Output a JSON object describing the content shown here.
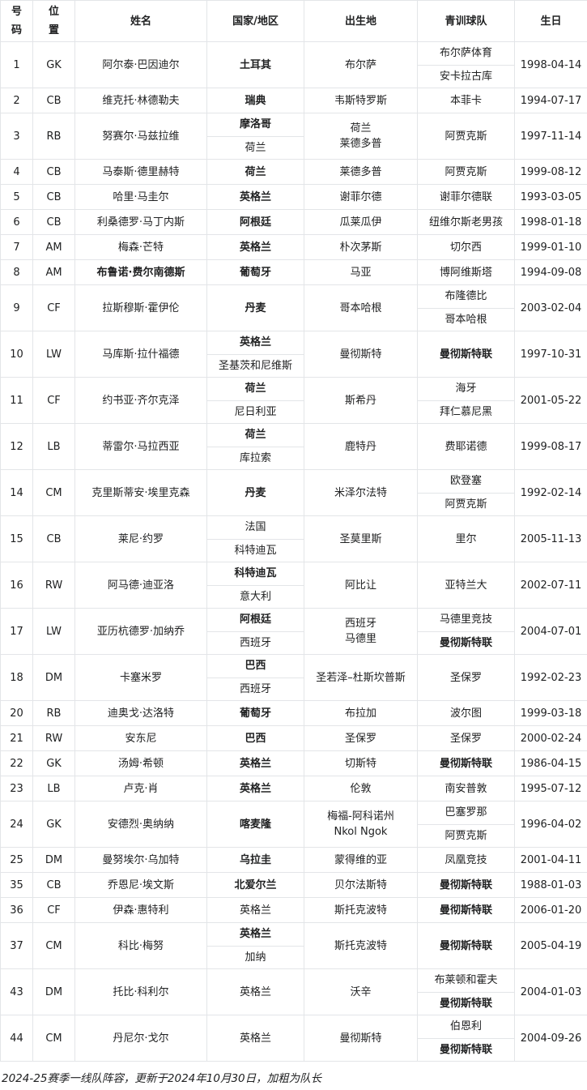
{
  "table": {
    "columns": [
      {
        "key": "number",
        "label": "号码"
      },
      {
        "key": "position",
        "label": "位置"
      },
      {
        "key": "name",
        "label": "姓名"
      },
      {
        "key": "country",
        "label": "国家/地区"
      },
      {
        "key": "birthplace",
        "label": "出生地"
      },
      {
        "key": "youth",
        "label": "青训球队"
      },
      {
        "key": "birthday",
        "label": "生日"
      }
    ],
    "rows": [
      {
        "number": "1",
        "position": "GK",
        "name": {
          "text": "阿尔泰·巴因迪尔",
          "bold": false
        },
        "countries": [
          {
            "text": "土耳其",
            "bold": true
          }
        ],
        "birthplace_lines": [
          "布尔萨"
        ],
        "youth_clubs": [
          {
            "text": "布尔萨体育",
            "bold": false
          },
          {
            "text": "安卡拉古库",
            "bold": false
          }
        ],
        "birthday": "1998-04-14"
      },
      {
        "number": "2",
        "position": "CB",
        "name": {
          "text": "维克托·林德勒夫",
          "bold": false
        },
        "countries": [
          {
            "text": "瑞典",
            "bold": true
          }
        ],
        "birthplace_lines": [
          "韦斯特罗斯"
        ],
        "youth_clubs": [
          {
            "text": "本菲卡",
            "bold": false
          }
        ],
        "birthday": "1994-07-17"
      },
      {
        "number": "3",
        "position": "RB",
        "name": {
          "text": "努赛尔·马兹拉维",
          "bold": false
        },
        "countries": [
          {
            "text": "摩洛哥",
            "bold": true
          },
          {
            "text": "荷兰",
            "bold": false
          }
        ],
        "birthplace_lines": [
          "荷兰",
          "莱德多普"
        ],
        "youth_clubs": [
          {
            "text": "阿贾克斯",
            "bold": false
          }
        ],
        "birthday": "1997-11-14"
      },
      {
        "number": "4",
        "position": "CB",
        "name": {
          "text": "马泰斯·德里赫特",
          "bold": false
        },
        "countries": [
          {
            "text": "荷兰",
            "bold": true
          }
        ],
        "birthplace_lines": [
          "莱德多普"
        ],
        "youth_clubs": [
          {
            "text": "阿贾克斯",
            "bold": false
          }
        ],
        "birthday": "1999-08-12"
      },
      {
        "number": "5",
        "position": "CB",
        "name": {
          "text": "哈里·马圭尔",
          "bold": false
        },
        "countries": [
          {
            "text": "英格兰",
            "bold": true
          }
        ],
        "birthplace_lines": [
          "谢菲尔德"
        ],
        "youth_clubs": [
          {
            "text": "谢菲尔德联",
            "bold": false
          }
        ],
        "birthday": "1993-03-05"
      },
      {
        "number": "6",
        "position": "CB",
        "name": {
          "text": "利桑德罗·马丁内斯",
          "bold": false
        },
        "countries": [
          {
            "text": "阿根廷",
            "bold": true
          }
        ],
        "birthplace_lines": [
          "瓜莱瓜伊"
        ],
        "youth_clubs": [
          {
            "text": "纽维尔斯老男孩",
            "bold": false
          }
        ],
        "birthday": "1998-01-18"
      },
      {
        "number": "7",
        "position": "AM",
        "name": {
          "text": "梅森·芒特",
          "bold": false
        },
        "countries": [
          {
            "text": "英格兰",
            "bold": true
          }
        ],
        "birthplace_lines": [
          "朴次茅斯"
        ],
        "youth_clubs": [
          {
            "text": "切尔西",
            "bold": false
          }
        ],
        "birthday": "1999-01-10"
      },
      {
        "number": "8",
        "position": "AM",
        "name": {
          "text": "布鲁诺·费尔南德斯",
          "bold": true
        },
        "countries": [
          {
            "text": "葡萄牙",
            "bold": true
          }
        ],
        "birthplace_lines": [
          "马亚"
        ],
        "youth_clubs": [
          {
            "text": "博阿维斯塔",
            "bold": false
          }
        ],
        "birthday": "1994-09-08"
      },
      {
        "number": "9",
        "position": "CF",
        "name": {
          "text": "拉斯穆斯·霍伊伦",
          "bold": false
        },
        "countries": [
          {
            "text": "丹麦",
            "bold": true
          }
        ],
        "birthplace_lines": [
          "哥本哈根"
        ],
        "youth_clubs": [
          {
            "text": "布隆德比",
            "bold": false
          },
          {
            "text": "哥本哈根",
            "bold": false
          }
        ],
        "birthday": "2003-02-04"
      },
      {
        "number": "10",
        "position": "LW",
        "name": {
          "text": "马库斯·拉什福德",
          "bold": false
        },
        "countries": [
          {
            "text": "英格兰",
            "bold": true
          },
          {
            "text": "圣基茨和尼维斯",
            "bold": false
          }
        ],
        "birthplace_lines": [
          "曼彻斯特"
        ],
        "youth_clubs": [
          {
            "text": "曼彻斯特联",
            "bold": true
          }
        ],
        "birthday": "1997-10-31"
      },
      {
        "number": "11",
        "position": "CF",
        "name": {
          "text": "约书亚·齐尔克泽",
          "bold": false
        },
        "countries": [
          {
            "text": "荷兰",
            "bold": true
          },
          {
            "text": "尼日利亚",
            "bold": false
          }
        ],
        "birthplace_lines": [
          "斯希丹"
        ],
        "youth_clubs": [
          {
            "text": "海牙",
            "bold": false
          },
          {
            "text": "拜仁慕尼黑",
            "bold": false
          }
        ],
        "birthday": "2001-05-22"
      },
      {
        "number": "12",
        "position": "LB",
        "name": {
          "text": "蒂雷尔·马拉西亚",
          "bold": false
        },
        "countries": [
          {
            "text": "荷兰",
            "bold": true
          },
          {
            "text": "库拉索",
            "bold": false
          }
        ],
        "birthplace_lines": [
          "鹿特丹"
        ],
        "youth_clubs": [
          {
            "text": "费耶诺德",
            "bold": false
          }
        ],
        "birthday": "1999-08-17"
      },
      {
        "number": "14",
        "position": "CM",
        "name": {
          "text": "克里斯蒂安·埃里克森",
          "bold": false
        },
        "countries": [
          {
            "text": "丹麦",
            "bold": true
          }
        ],
        "birthplace_lines": [
          "米泽尔法特"
        ],
        "youth_clubs": [
          {
            "text": "欧登塞",
            "bold": false
          },
          {
            "text": "阿贾克斯",
            "bold": false
          }
        ],
        "birthday": "1992-02-14"
      },
      {
        "number": "15",
        "position": "CB",
        "name": {
          "text": "莱尼·约罗",
          "bold": false
        },
        "countries": [
          {
            "text": "法国",
            "bold": false
          },
          {
            "text": "科特迪瓦",
            "bold": false
          }
        ],
        "birthplace_lines": [
          "圣莫里斯"
        ],
        "youth_clubs": [
          {
            "text": "里尔",
            "bold": false
          }
        ],
        "birthday": "2005-11-13"
      },
      {
        "number": "16",
        "position": "RW",
        "name": {
          "text": "阿马德·迪亚洛",
          "bold": false
        },
        "countries": [
          {
            "text": "科特迪瓦",
            "bold": true
          },
          {
            "text": "意大利",
            "bold": false
          }
        ],
        "birthplace_lines": [
          "阿比让"
        ],
        "youth_clubs": [
          {
            "text": "亚特兰大",
            "bold": false
          }
        ],
        "birthday": "2002-07-11"
      },
      {
        "number": "17",
        "position": "LW",
        "name": {
          "text": "亚历杭德罗·加纳乔",
          "bold": false
        },
        "countries": [
          {
            "text": "阿根廷",
            "bold": true
          },
          {
            "text": "西班牙",
            "bold": false
          }
        ],
        "birthplace_lines": [
          "西班牙",
          "马德里"
        ],
        "youth_clubs": [
          {
            "text": "马德里竞技",
            "bold": false
          },
          {
            "text": "曼彻斯特联",
            "bold": true
          }
        ],
        "birthday": "2004-07-01"
      },
      {
        "number": "18",
        "position": "DM",
        "name": {
          "text": "卡塞米罗",
          "bold": false
        },
        "countries": [
          {
            "text": "巴西",
            "bold": true
          },
          {
            "text": "西班牙",
            "bold": false
          }
        ],
        "birthplace_lines": [
          "圣若泽–杜斯坎普斯"
        ],
        "youth_clubs": [
          {
            "text": "圣保罗",
            "bold": false
          }
        ],
        "birthday": "1992-02-23"
      },
      {
        "number": "20",
        "position": "RB",
        "name": {
          "text": "迪奥戈·达洛特",
          "bold": false
        },
        "countries": [
          {
            "text": "葡萄牙",
            "bold": true
          }
        ],
        "birthplace_lines": [
          "布拉加"
        ],
        "youth_clubs": [
          {
            "text": "波尔图",
            "bold": false
          }
        ],
        "birthday": "1999-03-18"
      },
      {
        "number": "21",
        "position": "RW",
        "name": {
          "text": "安东尼",
          "bold": false
        },
        "countries": [
          {
            "text": "巴西",
            "bold": true
          }
        ],
        "birthplace_lines": [
          "圣保罗"
        ],
        "youth_clubs": [
          {
            "text": "圣保罗",
            "bold": false
          }
        ],
        "birthday": "2000-02-24"
      },
      {
        "number": "22",
        "position": "GK",
        "name": {
          "text": "汤姆·希顿",
          "bold": false
        },
        "countries": [
          {
            "text": "英格兰",
            "bold": true
          }
        ],
        "birthplace_lines": [
          "切斯特"
        ],
        "youth_clubs": [
          {
            "text": "曼彻斯特联",
            "bold": true
          }
        ],
        "birthday": "1986-04-15"
      },
      {
        "number": "23",
        "position": "LB",
        "name": {
          "text": "卢克·肖",
          "bold": false
        },
        "countries": [
          {
            "text": "英格兰",
            "bold": true
          }
        ],
        "birthplace_lines": [
          "伦敦"
        ],
        "youth_clubs": [
          {
            "text": "南安普敦",
            "bold": false
          }
        ],
        "birthday": "1995-07-12"
      },
      {
        "number": "24",
        "position": "GK",
        "name": {
          "text": "安德烈·奥纳纳",
          "bold": false
        },
        "countries": [
          {
            "text": "喀麦隆",
            "bold": true
          }
        ],
        "birthplace_lines": [
          "梅福-阿科诺州",
          "Nkol Ngok"
        ],
        "youth_clubs": [
          {
            "text": "巴塞罗那",
            "bold": false
          },
          {
            "text": "阿贾克斯",
            "bold": false
          }
        ],
        "birthday": "1996-04-02"
      },
      {
        "number": "25",
        "position": "DM",
        "name": {
          "text": "曼努埃尔·乌加特",
          "bold": false
        },
        "countries": [
          {
            "text": "乌拉圭",
            "bold": true
          }
        ],
        "birthplace_lines": [
          "蒙得维的亚"
        ],
        "youth_clubs": [
          {
            "text": "凤凰竞技",
            "bold": false
          }
        ],
        "birthday": "2001-04-11"
      },
      {
        "number": "35",
        "position": "CB",
        "name": {
          "text": "乔恩尼·埃文斯",
          "bold": false
        },
        "countries": [
          {
            "text": "北爱尔兰",
            "bold": true
          }
        ],
        "birthplace_lines": [
          "贝尔法斯特"
        ],
        "youth_clubs": [
          {
            "text": "曼彻斯特联",
            "bold": true
          }
        ],
        "birthday": "1988-01-03"
      },
      {
        "number": "36",
        "position": "CF",
        "name": {
          "text": "伊森·惠特利",
          "bold": false
        },
        "countries": [
          {
            "text": "英格兰",
            "bold": false
          }
        ],
        "birthplace_lines": [
          "斯托克波特"
        ],
        "youth_clubs": [
          {
            "text": "曼彻斯特联",
            "bold": true
          }
        ],
        "birthday": "2006-01-20"
      },
      {
        "number": "37",
        "position": "CM",
        "name": {
          "text": "科比·梅努",
          "bold": false
        },
        "countries": [
          {
            "text": "英格兰",
            "bold": true
          },
          {
            "text": "加纳",
            "bold": false
          }
        ],
        "birthplace_lines": [
          "斯托克波特"
        ],
        "youth_clubs": [
          {
            "text": "曼彻斯特联",
            "bold": true
          }
        ],
        "birthday": "2005-04-19"
      },
      {
        "number": "43",
        "position": "DM",
        "name": {
          "text": "托比·科利尔",
          "bold": false
        },
        "countries": [
          {
            "text": "英格兰",
            "bold": false
          }
        ],
        "birthplace_lines": [
          "沃辛"
        ],
        "youth_clubs": [
          {
            "text": "布莱顿和霍夫",
            "bold": false
          },
          {
            "text": "曼彻斯特联",
            "bold": true
          }
        ],
        "birthday": "2004-01-03"
      },
      {
        "number": "44",
        "position": "CM",
        "name": {
          "text": "丹尼尔·戈尔",
          "bold": false
        },
        "countries": [
          {
            "text": "英格兰",
            "bold": false
          }
        ],
        "birthplace_lines": [
          "曼彻斯特"
        ],
        "youth_clubs": [
          {
            "text": "伯恩利",
            "bold": false
          },
          {
            "text": "曼彻斯特联",
            "bold": true
          }
        ],
        "birthday": "2004-09-26"
      }
    ]
  },
  "footer": {
    "caption": "2024-25赛季一线队阵容，更新于2024年10月30日，加粗为队长"
  }
}
